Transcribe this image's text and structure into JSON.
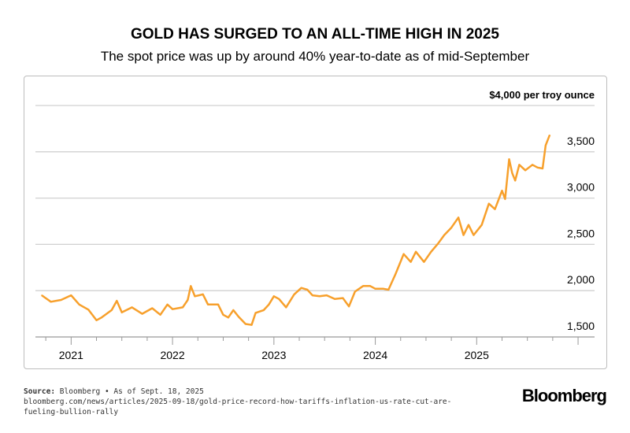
{
  "title": "GOLD HAS SURGED TO AN ALL-TIME HIGH IN 2025",
  "subtitle": "The spot price was up by around 40% year-to-date as of mid-September",
  "source": {
    "label": "Source:",
    "text": "Bloomberg • As of Sept. 18, 2025",
    "url_line1": "bloomberg.com/news/articles/2025-09-18/gold-price-record-how-tariffs-inflation-us-rate-cut-are-",
    "url_line2": "fueling-bullion-rally"
  },
  "logo": "Bloomberg",
  "chart_data": {
    "type": "line",
    "title": "GOLD HAS SURGED TO AN ALL-TIME HIGH IN 2025",
    "ylabel": "$4,000 per troy ounce",
    "line_color": "#f7a02c",
    "grid": true,
    "ylim": [
      1500,
      4000
    ],
    "xlim": [
      2020.71,
      2025.72
    ],
    "yticks": [
      {
        "v": 4000,
        "label": "$4,000 per troy ounce"
      },
      {
        "v": 3500,
        "label": "3,500"
      },
      {
        "v": 3000,
        "label": "3,000"
      },
      {
        "v": 2500,
        "label": "2,500"
      },
      {
        "v": 2000,
        "label": "2,000"
      },
      {
        "v": 1500,
        "label": "1,500"
      }
    ],
    "xticks": [
      {
        "v": 2021,
        "label": "2021"
      },
      {
        "v": 2022,
        "label": "2022"
      },
      {
        "v": 2023,
        "label": "2023"
      },
      {
        "v": 2024,
        "label": "2024"
      },
      {
        "v": 2025,
        "label": "2025"
      }
    ],
    "x": [
      2020.71,
      2020.8,
      2020.9,
      2021.0,
      2021.08,
      2021.17,
      2021.25,
      2021.3,
      2021.4,
      2021.45,
      2021.5,
      2021.6,
      2021.7,
      2021.8,
      2021.88,
      2021.95,
      2022.0,
      2022.1,
      2022.15,
      2022.18,
      2022.22,
      2022.3,
      2022.35,
      2022.45,
      2022.5,
      2022.55,
      2022.6,
      2022.65,
      2022.72,
      2022.78,
      2022.82,
      2022.9,
      2022.95,
      2023.0,
      2023.05,
      2023.12,
      2023.2,
      2023.27,
      2023.33,
      2023.38,
      2023.45,
      2023.52,
      2023.6,
      2023.68,
      2023.74,
      2023.8,
      2023.88,
      2023.95,
      2024.0,
      2024.08,
      2024.13,
      2024.2,
      2024.28,
      2024.35,
      2024.4,
      2024.48,
      2024.55,
      2024.62,
      2024.68,
      2024.75,
      2024.82,
      2024.87,
      2024.92,
      2024.97,
      2025.05,
      2025.12,
      2025.18,
      2025.25,
      2025.28,
      2025.32,
      2025.35,
      2025.38,
      2025.42,
      2025.48,
      2025.55,
      2025.6,
      2025.65,
      2025.68,
      2025.72
    ],
    "y": [
      1950,
      1880,
      1900,
      1950,
      1850,
      1795,
      1680,
      1710,
      1790,
      1890,
      1765,
      1820,
      1750,
      1810,
      1740,
      1850,
      1800,
      1820,
      1900,
      2050,
      1940,
      1960,
      1850,
      1850,
      1740,
      1710,
      1790,
      1720,
      1640,
      1630,
      1760,
      1790,
      1850,
      1940,
      1910,
      1820,
      1960,
      2030,
      2010,
      1950,
      1940,
      1950,
      1910,
      1920,
      1830,
      1990,
      2050,
      2050,
      2020,
      2020,
      2010,
      2180,
      2395,
      2310,
      2420,
      2310,
      2420,
      2510,
      2600,
      2680,
      2790,
      2600,
      2710,
      2600,
      2710,
      2940,
      2880,
      3080,
      2990,
      3420,
      3270,
      3190,
      3360,
      3300,
      3360,
      3330,
      3320,
      3570,
      3680
    ]
  }
}
